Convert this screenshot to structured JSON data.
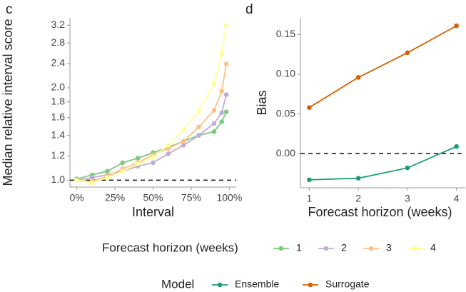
{
  "chart_data": [
    {
      "type": "line",
      "panel": "c",
      "ylog": true,
      "x_label": "Interval",
      "y_label": "Median relative interval score",
      "x": [
        0,
        10,
        20,
        30,
        40,
        50,
        60,
        70,
        80,
        90,
        95,
        98
      ],
      "xlim": [
        -4.5,
        104.5
      ],
      "xticks": [
        {
          "value": 0,
          "label": "0%"
        },
        {
          "value": 25,
          "label": "25%"
        },
        {
          "value": 50,
          "label": "50%"
        },
        {
          "value": 75,
          "label": "75%"
        },
        {
          "value": 100,
          "label": "100%"
        }
      ],
      "ylim": [
        0.95,
        3.38
      ],
      "yticks": [
        {
          "value": 1,
          "label": "1.0"
        },
        1.2,
        1.4,
        1.6,
        1.8,
        {
          "value": 2,
          "label": "2.0"
        },
        2.4,
        2.8,
        3.2
      ],
      "hline": 1,
      "legend_title": "Forecast horizon (weeks)",
      "series": [
        {
          "name": "1",
          "color": "#7fc97f",
          "values": [
            1.01,
            1.04,
            1.07,
            1.14,
            1.18,
            1.23,
            1.28,
            1.34,
            1.4,
            1.44,
            1.55,
            1.67
          ]
        },
        {
          "name": "2",
          "color": "#beaed4",
          "values": [
            1.0,
            1.02,
            1.04,
            1.07,
            1.11,
            1.14,
            1.22,
            1.3,
            1.4,
            1.53,
            1.66,
            1.9
          ]
        },
        {
          "name": "3",
          "color": "#fdc086",
          "values": [
            1.0,
            0.99,
            1.03,
            1.09,
            1.14,
            1.21,
            1.27,
            1.34,
            1.49,
            1.69,
            1.95,
            2.39
          ]
        },
        {
          "name": "4",
          "color": "#ffff99",
          "values": [
            1.0,
            0.98,
            1.02,
            1.07,
            1.13,
            1.19,
            1.3,
            1.46,
            1.68,
            2.07,
            2.59,
            3.2
          ]
        }
      ]
    },
    {
      "type": "line",
      "panel": "d",
      "x_label": "Forecast horizon (weeks)",
      "y_label": "Bias",
      "x": [
        1,
        2,
        3,
        4
      ],
      "xlim": [
        0.82,
        4.18
      ],
      "xticks": [
        1,
        2,
        3,
        4
      ],
      "ylim": [
        -0.043,
        0.171
      ],
      "yticks": [
        {
          "value": 0,
          "label": "0.00"
        },
        0.05,
        {
          "value": 0.1,
          "label": "0.10"
        },
        0.15
      ],
      "hline": 0,
      "legend_title": "Model",
      "series": [
        {
          "name": "Ensemble",
          "color": "#1b9e77",
          "values": [
            -0.033,
            -0.031,
            -0.018,
            0.009
          ]
        },
        {
          "name": "Surrogate",
          "color": "#d95f02",
          "values": [
            0.058,
            0.096,
            0.127,
            0.161
          ]
        }
      ]
    }
  ]
}
